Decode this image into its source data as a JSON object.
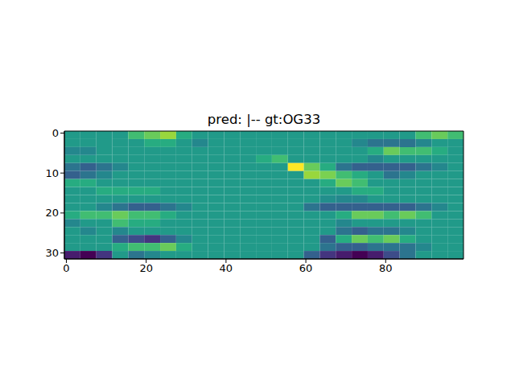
{
  "chart_data": {
    "type": "heatmap",
    "title": "pred: |-- gt:OG33",
    "xlim": [
      -0.5,
      99.5
    ],
    "ylim": [
      31.5,
      -0.5
    ],
    "xticks": [
      0,
      20,
      40,
      60,
      80
    ],
    "yticks": [
      0,
      10,
      20,
      30
    ],
    "cells": [
      [
        0.45,
        0.45,
        0.45,
        0.45,
        0.55,
        0.6,
        0.65,
        0.5,
        0.45,
        0.45,
        0.45,
        0.45,
        0.45,
        0.45,
        0.45,
        0.45,
        0.45,
        0.45,
        0.45,
        0.45,
        0.45,
        0.45,
        0.55,
        0.6,
        0.55
      ],
      [
        0.45,
        0.45,
        0.45,
        0.45,
        0.45,
        0.5,
        0.5,
        0.45,
        0.4,
        0.45,
        0.45,
        0.45,
        0.45,
        0.45,
        0.45,
        0.45,
        0.45,
        0.45,
        0.4,
        0.35,
        0.35,
        0.35,
        0.4,
        0.45,
        0.45
      ],
      [
        0.4,
        0.4,
        0.45,
        0.45,
        0.45,
        0.45,
        0.45,
        0.45,
        0.45,
        0.45,
        0.45,
        0.45,
        0.45,
        0.45,
        0.45,
        0.45,
        0.45,
        0.45,
        0.45,
        0.5,
        0.6,
        0.55,
        0.55,
        0.5,
        0.45
      ],
      [
        0.45,
        0.45,
        0.45,
        0.45,
        0.45,
        0.45,
        0.45,
        0.45,
        0.45,
        0.45,
        0.45,
        0.45,
        0.5,
        0.55,
        0.45,
        0.45,
        0.45,
        0.45,
        0.45,
        0.4,
        0.45,
        0.45,
        0.45,
        0.45,
        0.45
      ],
      [
        0.35,
        0.3,
        0.35,
        0.4,
        0.45,
        0.45,
        0.45,
        0.45,
        0.45,
        0.45,
        0.45,
        0.45,
        0.45,
        0.45,
        0.75,
        0.6,
        0.5,
        0.35,
        0.3,
        0.3,
        0.3,
        0.3,
        0.35,
        0.4,
        0.45
      ],
      [
        0.3,
        0.35,
        0.4,
        0.45,
        0.45,
        0.45,
        0.45,
        0.45,
        0.45,
        0.45,
        0.45,
        0.45,
        0.45,
        0.45,
        0.45,
        0.65,
        0.62,
        0.55,
        0.5,
        0.45,
        0.35,
        0.4,
        0.45,
        0.45,
        0.45
      ],
      [
        0.5,
        0.5,
        0.45,
        0.45,
        0.45,
        0.45,
        0.45,
        0.45,
        0.45,
        0.45,
        0.45,
        0.45,
        0.45,
        0.45,
        0.45,
        0.45,
        0.5,
        0.6,
        0.55,
        0.45,
        0.45,
        0.45,
        0.45,
        0.45,
        0.45
      ],
      [
        0.45,
        0.45,
        0.5,
        0.5,
        0.5,
        0.5,
        0.45,
        0.45,
        0.45,
        0.45,
        0.45,
        0.45,
        0.45,
        0.45,
        0.45,
        0.45,
        0.45,
        0.45,
        0.5,
        0.5,
        0.45,
        0.45,
        0.45,
        0.45,
        0.45
      ],
      [
        0.45,
        0.45,
        0.45,
        0.45,
        0.45,
        0.45,
        0.45,
        0.45,
        0.45,
        0.45,
        0.45,
        0.45,
        0.45,
        0.45,
        0.45,
        0.45,
        0.42,
        0.4,
        0.4,
        0.45,
        0.45,
        0.45,
        0.45,
        0.45,
        0.45
      ],
      [
        0.45,
        0.45,
        0.4,
        0.35,
        0.3,
        0.3,
        0.35,
        0.4,
        0.45,
        0.45,
        0.45,
        0.45,
        0.45,
        0.45,
        0.45,
        0.35,
        0.3,
        0.3,
        0.3,
        0.3,
        0.3,
        0.3,
        0.35,
        0.4,
        0.45
      ],
      [
        0.5,
        0.55,
        0.55,
        0.6,
        0.55,
        0.55,
        0.5,
        0.45,
        0.45,
        0.45,
        0.45,
        0.45,
        0.45,
        0.45,
        0.45,
        0.45,
        0.45,
        0.5,
        0.6,
        0.6,
        0.55,
        0.6,
        0.55,
        0.45,
        0.45
      ],
      [
        0.4,
        0.45,
        0.45,
        0.55,
        0.5,
        0.5,
        0.45,
        0.45,
        0.45,
        0.45,
        0.45,
        0.45,
        0.45,
        0.45,
        0.45,
        0.45,
        0.45,
        0.4,
        0.45,
        0.45,
        0.45,
        0.45,
        0.45,
        0.45,
        0.45
      ],
      [
        0.45,
        0.4,
        0.45,
        0.4,
        0.45,
        0.45,
        0.45,
        0.45,
        0.45,
        0.45,
        0.45,
        0.45,
        0.45,
        0.45,
        0.45,
        0.45,
        0.45,
        0.35,
        0.3,
        0.35,
        0.35,
        0.4,
        0.45,
        0.45,
        0.45
      ],
      [
        0.45,
        0.45,
        0.45,
        0.3,
        0.25,
        0.2,
        0.3,
        0.4,
        0.45,
        0.45,
        0.45,
        0.45,
        0.45,
        0.45,
        0.45,
        0.45,
        0.3,
        0.5,
        0.6,
        0.55,
        0.6,
        0.5,
        0.45,
        0.45,
        0.45
      ],
      [
        0.45,
        0.45,
        0.45,
        0.5,
        0.55,
        0.55,
        0.6,
        0.5,
        0.45,
        0.45,
        0.45,
        0.45,
        0.45,
        0.45,
        0.45,
        0.45,
        0.35,
        0.3,
        0.3,
        0.35,
        0.35,
        0.35,
        0.4,
        0.45,
        0.45
      ],
      [
        0.15,
        0.1,
        0.2,
        0.45,
        0.35,
        0.4,
        0.45,
        0.45,
        0.45,
        0.45,
        0.45,
        0.45,
        0.45,
        0.45,
        0.45,
        0.3,
        0.2,
        0.15,
        0.1,
        0.15,
        0.25,
        0.35,
        0.45,
        0.45,
        0.45
      ]
    ]
  }
}
